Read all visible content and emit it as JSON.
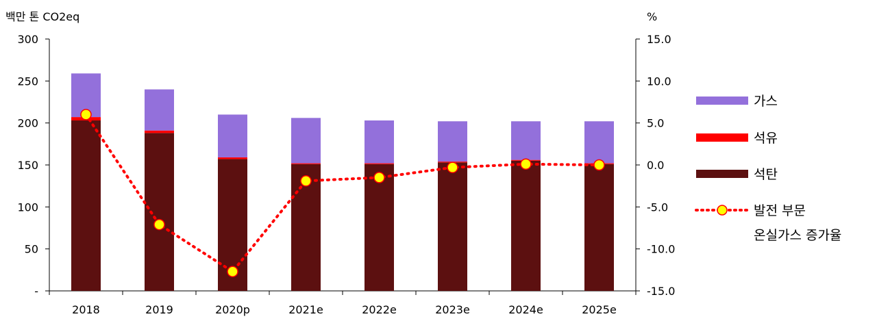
{
  "chart_data": {
    "type": "bar",
    "categories": [
      "2018",
      "2019",
      "2020p",
      "2021e",
      "2022e",
      "2023e",
      "2024e",
      "2025e"
    ],
    "series": [
      {
        "name": "석탄",
        "type": "bar",
        "color": "#5c1010",
        "values": [
          203,
          188,
          157,
          151,
          151,
          153,
          155,
          151
        ]
      },
      {
        "name": "석유",
        "type": "bar",
        "color": "#ff0000",
        "values": [
          4,
          3,
          2,
          1,
          1,
          1,
          1,
          1
        ]
      },
      {
        "name": "가스",
        "type": "bar",
        "color": "#9370db",
        "values": [
          52,
          49,
          51,
          54,
          51,
          48,
          46,
          50
        ]
      },
      {
        "name": "발전 부문 온실가스 증가율",
        "type": "line",
        "axis": "right",
        "color": "#ff0000",
        "marker_color": "#ffff00",
        "values": [
          6.0,
          -7.1,
          -12.7,
          -1.9,
          -1.5,
          -0.3,
          0.1,
          0.0
        ]
      }
    ],
    "left_axis": {
      "label": "백만 톤 CO2eq",
      "ylim": [
        0,
        300
      ],
      "ticks": [
        "-",
        "50",
        "100",
        "150",
        "200",
        "250",
        "300"
      ]
    },
    "right_axis": {
      "label": "%",
      "ylim": [
        -15,
        15
      ],
      "ticks": [
        "-15.0",
        "-10.0",
        "-5.0",
        "0.0",
        "5.0",
        "10.0",
        "15.0"
      ]
    },
    "legend": {
      "placement": "right",
      "entries": [
        {
          "key": "gas",
          "label": "가스"
        },
        {
          "key": "oil",
          "label": "석유"
        },
        {
          "key": "coal",
          "label": "석탄"
        },
        {
          "key": "rate",
          "label_lines": [
            "발전 부문",
            "온실가스 증가율"
          ]
        }
      ]
    },
    "grid": false
  }
}
